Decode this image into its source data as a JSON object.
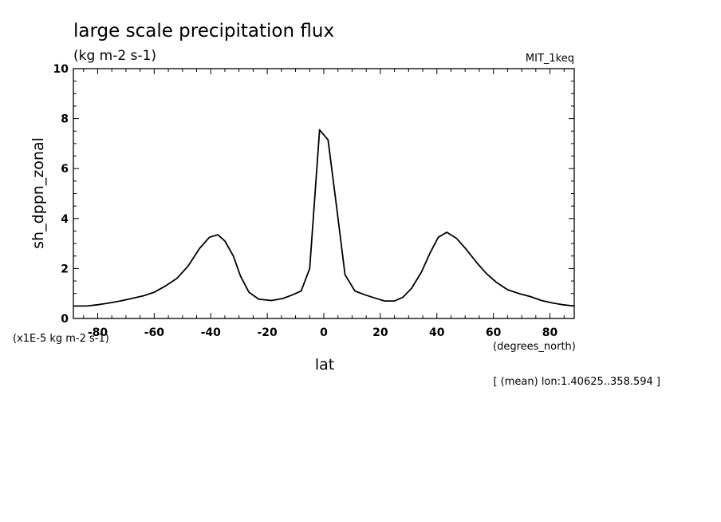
{
  "chart_data": {
    "type": "line",
    "title": "large scale precipitation flux",
    "units": "(kg m-2 s-1)",
    "experiment": "MIT_1keq",
    "xlabel": "lat",
    "ylabel": "sh_dppn_zonal",
    "scale_note": "(x1E-5 kg m-2 s-1)",
    "x_units": "(degrees_north)",
    "footnote": "[ (mean) lon:1.40625..358.594 ]",
    "xlim": [
      -88.6,
      88.6
    ],
    "ylim": [
      0,
      10
    ],
    "x_ticks": [
      -80,
      -60,
      -40,
      -20,
      0,
      20,
      40,
      60,
      80
    ],
    "x_tick_labels": [
      "-80",
      "-60",
      "-40",
      "-20",
      "0",
      "20",
      "40",
      "60",
      "80"
    ],
    "y_ticks": [
      0,
      2,
      4,
      6,
      8,
      10
    ],
    "y_tick_labels": [
      "0",
      "2",
      "4",
      "6",
      "8",
      "10"
    ],
    "series": [
      {
        "x": [
          -88.6,
          -84,
          -80,
          -76,
          -72,
          -68,
          -64,
          -60,
          -56,
          -52,
          -48,
          -44,
          -40.5,
          -37.5,
          -35,
          -32,
          -29.5,
          -26.5,
          -23,
          -18.5,
          -14.5,
          -11,
          -8,
          -5,
          -1.5,
          1.5,
          4.5,
          7.5,
          11,
          14.5,
          18,
          21.5,
          25,
          28,
          31,
          34.5,
          37.5,
          40.5,
          43.5,
          47,
          50.5,
          54,
          57.5,
          61,
          65,
          69,
          73,
          77,
          81,
          84.5,
          88.6
        ],
        "values": [
          0.5,
          0.5,
          0.55,
          0.62,
          0.7,
          0.8,
          0.9,
          1.05,
          1.3,
          1.6,
          2.1,
          2.8,
          3.25,
          3.35,
          3.1,
          2.5,
          1.7,
          1.05,
          0.77,
          0.72,
          0.8,
          0.95,
          1.1,
          2.0,
          7.55,
          7.15,
          4.5,
          1.75,
          1.1,
          0.95,
          0.82,
          0.7,
          0.7,
          0.85,
          1.2,
          1.85,
          2.6,
          3.25,
          3.45,
          3.2,
          2.75,
          2.25,
          1.8,
          1.45,
          1.15,
          1.0,
          0.88,
          0.72,
          0.62,
          0.55,
          0.5
        ]
      }
    ]
  }
}
